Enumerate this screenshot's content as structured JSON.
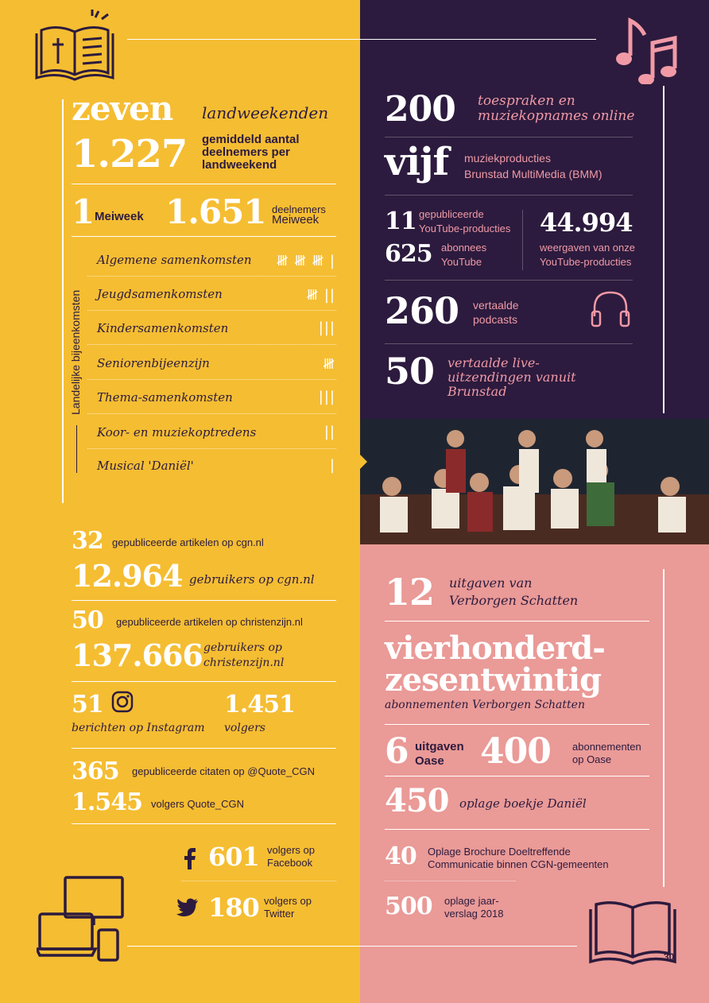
{
  "colors": {
    "yellow": "#f5bd32",
    "purple": "#2c1b3e",
    "pink": "#ea9a97",
    "accent_pink": "#f19aa6",
    "white": "#ffffff"
  },
  "icons": {
    "bible": "bible-icon",
    "music": "music-notes-icon",
    "headphones": "headphones-icon",
    "instagram": "instagram-icon",
    "facebook": "facebook-icon",
    "twitter": "twitter-icon",
    "devices": "devices-icon",
    "book": "open-book-icon"
  },
  "left_top": {
    "zeven": "zeven",
    "zeven_label": "landweekenden",
    "n1227": "1.227",
    "n1227_label": "gemiddeld aantal deelnemers per landweekend",
    "n1": "1",
    "meiweek": "Meiweek",
    "n1651": "1.651",
    "n1651_label1": "deelnemers",
    "n1651_label2": "Meiweek",
    "vertical_label": "Landelijke bijeenkomsten",
    "rows": [
      {
        "label": "Algemene samenkomsten",
        "tally": "𝍸 𝍸 𝍸 |"
      },
      {
        "label": "Jeugdsamenkomsten",
        "tally": "𝍸 ||"
      },
      {
        "label": "Kindersamenkomsten",
        "tally": "|||"
      },
      {
        "label": "Seniorenbijeenzijn",
        "tally": "𝍸"
      },
      {
        "label": "Thema-samenkomsten",
        "tally": "|||"
      },
      {
        "label": "Koor- en muziekoptredens",
        "tally": "||"
      },
      {
        "label": "Musical 'Daniël'",
        "tally": "|"
      }
    ]
  },
  "right_top": {
    "n200": "200",
    "n200_label": "toespraken en muziekopnames online",
    "vijf": "vijf",
    "vijf_label1": "muziekproducties",
    "vijf_label2": "Brunstad MultiMedia (BMM)",
    "n11": "11",
    "n11_label1": "gepubliceerde",
    "n11_label2": "YouTube-producties",
    "n625": "625",
    "n625_label1": "abonnees",
    "n625_label2": "YouTube",
    "n44994": "44.994",
    "n44994_label1": "weergaven van onze",
    "n44994_label2": "YouTube-producties",
    "n260": "260",
    "n260_label1": "vertaalde",
    "n260_label2": "podcasts",
    "n50": "50",
    "n50_label": "vertaalde live-uitzendingen vanuit Brunstad"
  },
  "left_bottom": {
    "n32": "32",
    "n32_label": "gepubliceerde artikelen op cgn.nl",
    "n12964": "12.964",
    "n12964_label": "gebruikers op cgn.nl",
    "n50": "50",
    "n50_label": "gepubliceerde artikelen op christenzijn.nl",
    "n137666": "137.666",
    "n137666_label1": "gebruikers op",
    "n137666_label2": "christenzijn.nl",
    "n51": "51",
    "n51_label": "berichten op Instagram",
    "n1451": "1.451",
    "n1451_label": "volgers",
    "n365": "365",
    "n365_label": "gepubliceerde citaten op @Quote_CGN",
    "n1545": "1.545",
    "n1545_label": "volgers Quote_CGN",
    "n601": "601",
    "n601_label1": "volgers op",
    "n601_label2": "Facebook",
    "n180": "180",
    "n180_label1": "volgers op",
    "n180_label2": "Twitter"
  },
  "right_bottom": {
    "n12": "12",
    "n12_label1": "uitgaven van",
    "n12_label2": "Verborgen Schatten",
    "vier1": "vierhonderd-",
    "vier2": "zesentwintig",
    "vier_label": "abonnementen Verborgen Schatten",
    "n6": "6",
    "n6_label1": "uitgaven",
    "n6_label2": "Oase",
    "n400": "400",
    "n400_label1": "abonnementen",
    "n400_label2": "op Oase",
    "n450": "450",
    "n450_label": "oplage boekje Daniël",
    "n40": "40",
    "n40_label1": "Oplage Brochure Doeltreffende",
    "n40_label2": "Communicatie binnen CGN-gemeenten",
    "n500": "500",
    "n500_label1": "oplage jaar-",
    "n500_label2": "verslag 2018"
  },
  "page_number": "30"
}
